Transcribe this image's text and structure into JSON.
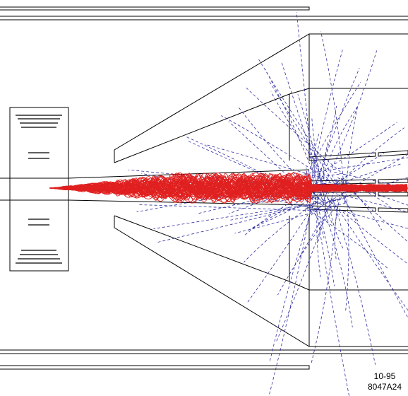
{
  "labels": {
    "date": "10-95",
    "id": "8047A24"
  }
}
